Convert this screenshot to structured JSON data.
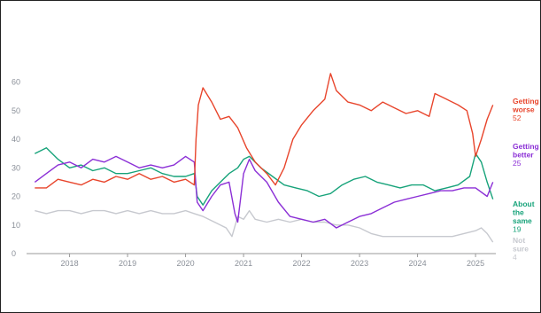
{
  "chart_data": {
    "type": "line",
    "title": "",
    "xlabel": "",
    "ylabel": "",
    "x_ticks": [
      "2018",
      "2019",
      "2020",
      "2021",
      "2022",
      "2023",
      "2024",
      "2025"
    ],
    "y_ticks": [
      "0",
      "10",
      "20",
      "30",
      "40",
      "50",
      "60"
    ],
    "xlim": [
      2017.35,
      2025.35
    ],
    "ylim": [
      0,
      67
    ],
    "grid": false,
    "legend": "direct-labels-right",
    "series": [
      {
        "key": "worse",
        "name_lines": [
          "Getting",
          "worse"
        ],
        "last_value": "52",
        "color": "#e8452c",
        "points": [
          [
            2017.4,
            23
          ],
          [
            2017.6,
            23
          ],
          [
            2017.8,
            26
          ],
          [
            2018.0,
            25
          ],
          [
            2018.2,
            24
          ],
          [
            2018.4,
            26
          ],
          [
            2018.6,
            25
          ],
          [
            2018.8,
            27
          ],
          [
            2019.0,
            26
          ],
          [
            2019.2,
            28
          ],
          [
            2019.4,
            26
          ],
          [
            2019.6,
            27
          ],
          [
            2019.8,
            25
          ],
          [
            2020.0,
            26
          ],
          [
            2020.15,
            24
          ],
          [
            2020.18,
            40
          ],
          [
            2020.22,
            52
          ],
          [
            2020.3,
            58
          ],
          [
            2020.45,
            53
          ],
          [
            2020.6,
            47
          ],
          [
            2020.75,
            48
          ],
          [
            2020.9,
            44
          ],
          [
            2021.05,
            37
          ],
          [
            2021.2,
            32
          ],
          [
            2021.4,
            28
          ],
          [
            2021.55,
            24
          ],
          [
            2021.7,
            30
          ],
          [
            2021.85,
            40
          ],
          [
            2022.0,
            45
          ],
          [
            2022.2,
            50
          ],
          [
            2022.4,
            54
          ],
          [
            2022.5,
            63
          ],
          [
            2022.6,
            57
          ],
          [
            2022.8,
            53
          ],
          [
            2023.0,
            52
          ],
          [
            2023.2,
            50
          ],
          [
            2023.4,
            53
          ],
          [
            2023.6,
            51
          ],
          [
            2023.8,
            49
          ],
          [
            2024.0,
            50
          ],
          [
            2024.2,
            48
          ],
          [
            2024.3,
            56
          ],
          [
            2024.5,
            54
          ],
          [
            2024.7,
            52
          ],
          [
            2024.85,
            50
          ],
          [
            2024.95,
            42
          ],
          [
            2025.0,
            34
          ],
          [
            2025.1,
            40
          ],
          [
            2025.2,
            47
          ],
          [
            2025.3,
            52
          ]
        ]
      },
      {
        "key": "better",
        "name_lines": [
          "Getting",
          "better"
        ],
        "last_value": "25",
        "color": "#8b2fd6",
        "points": [
          [
            2017.4,
            25
          ],
          [
            2017.6,
            28
          ],
          [
            2017.8,
            31
          ],
          [
            2018.0,
            32
          ],
          [
            2018.2,
            30
          ],
          [
            2018.4,
            33
          ],
          [
            2018.6,
            32
          ],
          [
            2018.8,
            34
          ],
          [
            2019.0,
            32
          ],
          [
            2019.2,
            30
          ],
          [
            2019.4,
            31
          ],
          [
            2019.6,
            30
          ],
          [
            2019.8,
            31
          ],
          [
            2020.0,
            34
          ],
          [
            2020.15,
            32
          ],
          [
            2020.2,
            18
          ],
          [
            2020.3,
            15
          ],
          [
            2020.45,
            20
          ],
          [
            2020.6,
            24
          ],
          [
            2020.75,
            25
          ],
          [
            2020.85,
            14
          ],
          [
            2020.9,
            11
          ],
          [
            2021.0,
            28
          ],
          [
            2021.1,
            33
          ],
          [
            2021.2,
            29
          ],
          [
            2021.4,
            25
          ],
          [
            2021.6,
            18
          ],
          [
            2021.8,
            13
          ],
          [
            2022.0,
            12
          ],
          [
            2022.2,
            11
          ],
          [
            2022.4,
            12
          ],
          [
            2022.6,
            9
          ],
          [
            2022.8,
            11
          ],
          [
            2023.0,
            13
          ],
          [
            2023.2,
            14
          ],
          [
            2023.4,
            16
          ],
          [
            2023.6,
            18
          ],
          [
            2023.8,
            19
          ],
          [
            2024.0,
            20
          ],
          [
            2024.2,
            21
          ],
          [
            2024.4,
            22
          ],
          [
            2024.6,
            22
          ],
          [
            2024.8,
            23
          ],
          [
            2025.0,
            23
          ],
          [
            2025.2,
            20
          ],
          [
            2025.3,
            25
          ]
        ]
      },
      {
        "key": "same",
        "name_lines": [
          "About",
          "the",
          "same"
        ],
        "last_value": "19",
        "color": "#17a37a",
        "points": [
          [
            2017.4,
            35
          ],
          [
            2017.6,
            37
          ],
          [
            2017.8,
            33
          ],
          [
            2018.0,
            30
          ],
          [
            2018.2,
            31
          ],
          [
            2018.4,
            29
          ],
          [
            2018.6,
            30
          ],
          [
            2018.8,
            28
          ],
          [
            2019.0,
            28
          ],
          [
            2019.2,
            29
          ],
          [
            2019.4,
            30
          ],
          [
            2019.6,
            28
          ],
          [
            2019.8,
            27
          ],
          [
            2020.0,
            27
          ],
          [
            2020.15,
            28
          ],
          [
            2020.2,
            20
          ],
          [
            2020.3,
            17
          ],
          [
            2020.45,
            22
          ],
          [
            2020.6,
            25
          ],
          [
            2020.75,
            28
          ],
          [
            2020.9,
            30
          ],
          [
            2021.0,
            33
          ],
          [
            2021.1,
            34
          ],
          [
            2021.3,
            30
          ],
          [
            2021.5,
            27
          ],
          [
            2021.7,
            24
          ],
          [
            2021.9,
            23
          ],
          [
            2022.1,
            22
          ],
          [
            2022.3,
            20
          ],
          [
            2022.5,
            21
          ],
          [
            2022.7,
            24
          ],
          [
            2022.9,
            26
          ],
          [
            2023.1,
            27
          ],
          [
            2023.3,
            25
          ],
          [
            2023.5,
            24
          ],
          [
            2023.7,
            23
          ],
          [
            2023.9,
            24
          ],
          [
            2024.1,
            24
          ],
          [
            2024.3,
            22
          ],
          [
            2024.5,
            23
          ],
          [
            2024.7,
            24
          ],
          [
            2024.9,
            27
          ],
          [
            2025.0,
            35
          ],
          [
            2025.1,
            32
          ],
          [
            2025.2,
            25
          ],
          [
            2025.3,
            19
          ]
        ]
      },
      {
        "key": "notsure",
        "name_lines": [
          "Not",
          "sure"
        ],
        "last_value": "4",
        "color": "#c7c9cf",
        "points": [
          [
            2017.4,
            15
          ],
          [
            2017.6,
            14
          ],
          [
            2017.8,
            15
          ],
          [
            2018.0,
            15
          ],
          [
            2018.2,
            14
          ],
          [
            2018.4,
            15
          ],
          [
            2018.6,
            15
          ],
          [
            2018.8,
            14
          ],
          [
            2019.0,
            15
          ],
          [
            2019.2,
            14
          ],
          [
            2019.4,
            15
          ],
          [
            2019.6,
            14
          ],
          [
            2019.8,
            14
          ],
          [
            2020.0,
            15
          ],
          [
            2020.15,
            14
          ],
          [
            2020.3,
            13
          ],
          [
            2020.5,
            11
          ],
          [
            2020.7,
            9
          ],
          [
            2020.8,
            6
          ],
          [
            2020.9,
            13
          ],
          [
            2021.0,
            12
          ],
          [
            2021.1,
            15
          ],
          [
            2021.2,
            12
          ],
          [
            2021.4,
            11
          ],
          [
            2021.6,
            12
          ],
          [
            2021.8,
            11
          ],
          [
            2022.0,
            12
          ],
          [
            2022.2,
            11
          ],
          [
            2022.4,
            11
          ],
          [
            2022.6,
            10
          ],
          [
            2022.8,
            10
          ],
          [
            2023.0,
            9
          ],
          [
            2023.2,
            7
          ],
          [
            2023.4,
            6
          ],
          [
            2023.6,
            6
          ],
          [
            2023.8,
            6
          ],
          [
            2024.0,
            6
          ],
          [
            2024.2,
            6
          ],
          [
            2024.4,
            6
          ],
          [
            2024.6,
            6
          ],
          [
            2024.8,
            7
          ],
          [
            2025.0,
            8
          ],
          [
            2025.1,
            9
          ],
          [
            2025.2,
            7
          ],
          [
            2025.3,
            4
          ]
        ]
      }
    ]
  }
}
